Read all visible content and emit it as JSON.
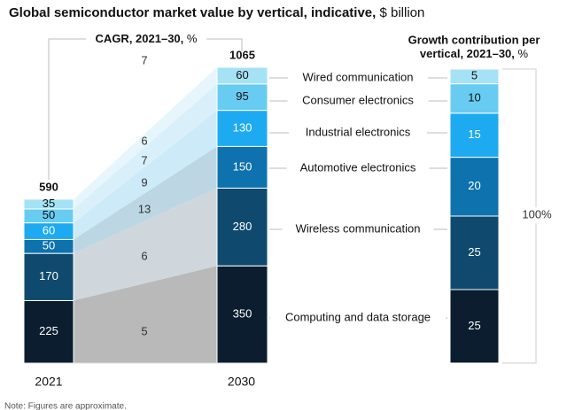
{
  "chart_data": {
    "type": "bar",
    "title": "Global semiconductor market value by vertical, indicative,",
    "title_unit": "$ billion",
    "cagr_label": "CAGR, 2021–30, %",
    "growth_title_line1": "Growth contribution per",
    "growth_title_line2": "vertical, 2021–30,",
    "growth_title_unit": "%",
    "growth_total": "100%",
    "note": "Note: Figures are approximate.",
    "categories": [
      "2021",
      "2030"
    ],
    "totals": [
      590,
      1065
    ],
    "colors": {
      "computing": "#0b1d2f",
      "wireless": "#0f4a6e",
      "automotive": "#0d72ad",
      "industrial": "#1eaaf0",
      "consumer": "#68ccf2",
      "wired": "#a5e2f5",
      "band_computing": "#b9b9b9",
      "band_wireless": "#cfd7dc",
      "band_automotive": "#bdd6e3",
      "band_industrial": "#cdeaf8",
      "band_consumer": "#d9f0fa",
      "band_wired": "#e6f6fc"
    },
    "series": [
      {
        "key": "computing",
        "name": "Computing and data storage",
        "values": [
          225,
          350
        ],
        "cagr": 5,
        "contribution": 25
      },
      {
        "key": "wireless",
        "name": "Wireless communication",
        "values": [
          170,
          280
        ],
        "cagr": 6,
        "contribution": 25
      },
      {
        "key": "automotive",
        "name": "Automotive electronics",
        "values": [
          50,
          150
        ],
        "cagr": 13,
        "contribution": 20
      },
      {
        "key": "industrial",
        "name": "Industrial electronics",
        "values": [
          60,
          130
        ],
        "cagr": 9,
        "contribution": 15
      },
      {
        "key": "consumer",
        "name": "Consumer electronics",
        "values": [
          50,
          95
        ],
        "cagr": 7,
        "contribution": 10
      },
      {
        "key": "wired",
        "name": "Wired communication",
        "values": [
          35,
          60
        ],
        "cagr": 6,
        "contribution": 5
      }
    ],
    "total_cagr": 7
  }
}
